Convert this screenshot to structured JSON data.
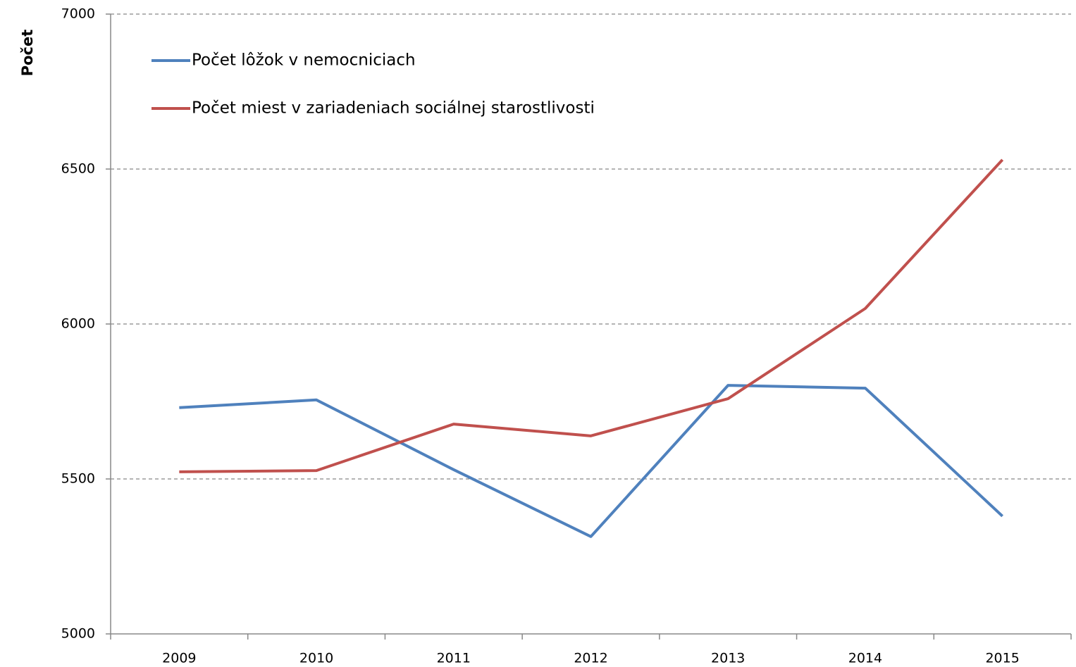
{
  "chart_data": {
    "type": "line",
    "y_axis_label": "Počet",
    "categories": [
      "2009",
      "2010",
      "2011",
      "2012",
      "2013",
      "2014",
      "2015"
    ],
    "series": [
      {
        "name": "Počet lôžok v nemocniciach",
        "color": "#4f81bd",
        "values": [
          5730,
          5755,
          5530,
          5314,
          5802,
          5793,
          5380
        ]
      },
      {
        "name": "Počet miest v zariadeniach sociálnej starostlivosti",
        "color": "#c0504d",
        "values": [
          5523,
          5527,
          5677,
          5639,
          5759,
          6050,
          6530
        ]
      }
    ],
    "ylim": [
      5000,
      7000
    ],
    "yticks": [
      5000,
      5500,
      6000,
      6500,
      7000
    ],
    "grid": true,
    "legend": "top-left"
  }
}
